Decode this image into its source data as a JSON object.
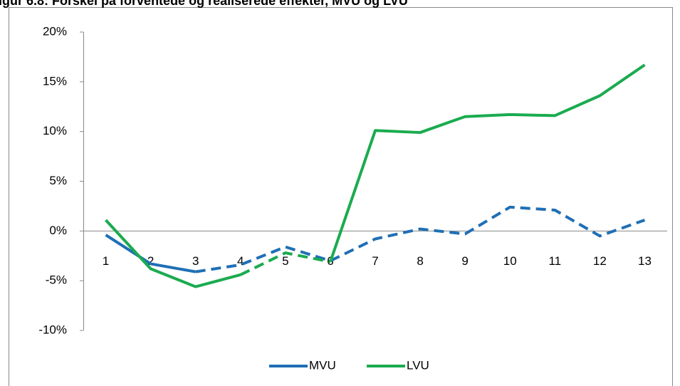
{
  "chart_data": {
    "type": "line",
    "title": "igur 6.8: Forskel på forventede og realiserede effekter, MVU og LVU",
    "categories": [
      "1",
      "2",
      "3",
      "4",
      "5",
      "6",
      "7",
      "8",
      "9",
      "10",
      "11",
      "12",
      "13"
    ],
    "series": [
      {
        "name": "MVU",
        "color": "#1f6fb5",
        "values": [
          -0.4,
          -3.3,
          -4.1,
          -3.4,
          -1.6,
          -3.0,
          -0.8,
          0.2,
          -0.3,
          2.4,
          2.1,
          -0.5,
          1.1
        ],
        "dashed_ranges": [
          [
            2,
            12
          ]
        ]
      },
      {
        "name": "LVU",
        "color": "#1aab4f",
        "values": [
          1.1,
          -3.8,
          -5.6,
          -4.4,
          -2.2,
          -3.1,
          10.1,
          9.9,
          11.5,
          11.7,
          11.6,
          13.6,
          16.7
        ],
        "dashed_ranges": [
          [
            3,
            5
          ]
        ]
      }
    ],
    "ylim": [
      -10,
      20
    ],
    "yticks": [
      {
        "value": -10,
        "label": "-10%"
      },
      {
        "value": -5,
        "label": "-5%"
      },
      {
        "value": 0,
        "label": "0%"
      },
      {
        "value": 5,
        "label": "5%"
      },
      {
        "value": 10,
        "label": "10%"
      },
      {
        "value": 15,
        "label": "15%"
      },
      {
        "value": 20,
        "label": "20%"
      }
    ],
    "legend": "bottom"
  }
}
